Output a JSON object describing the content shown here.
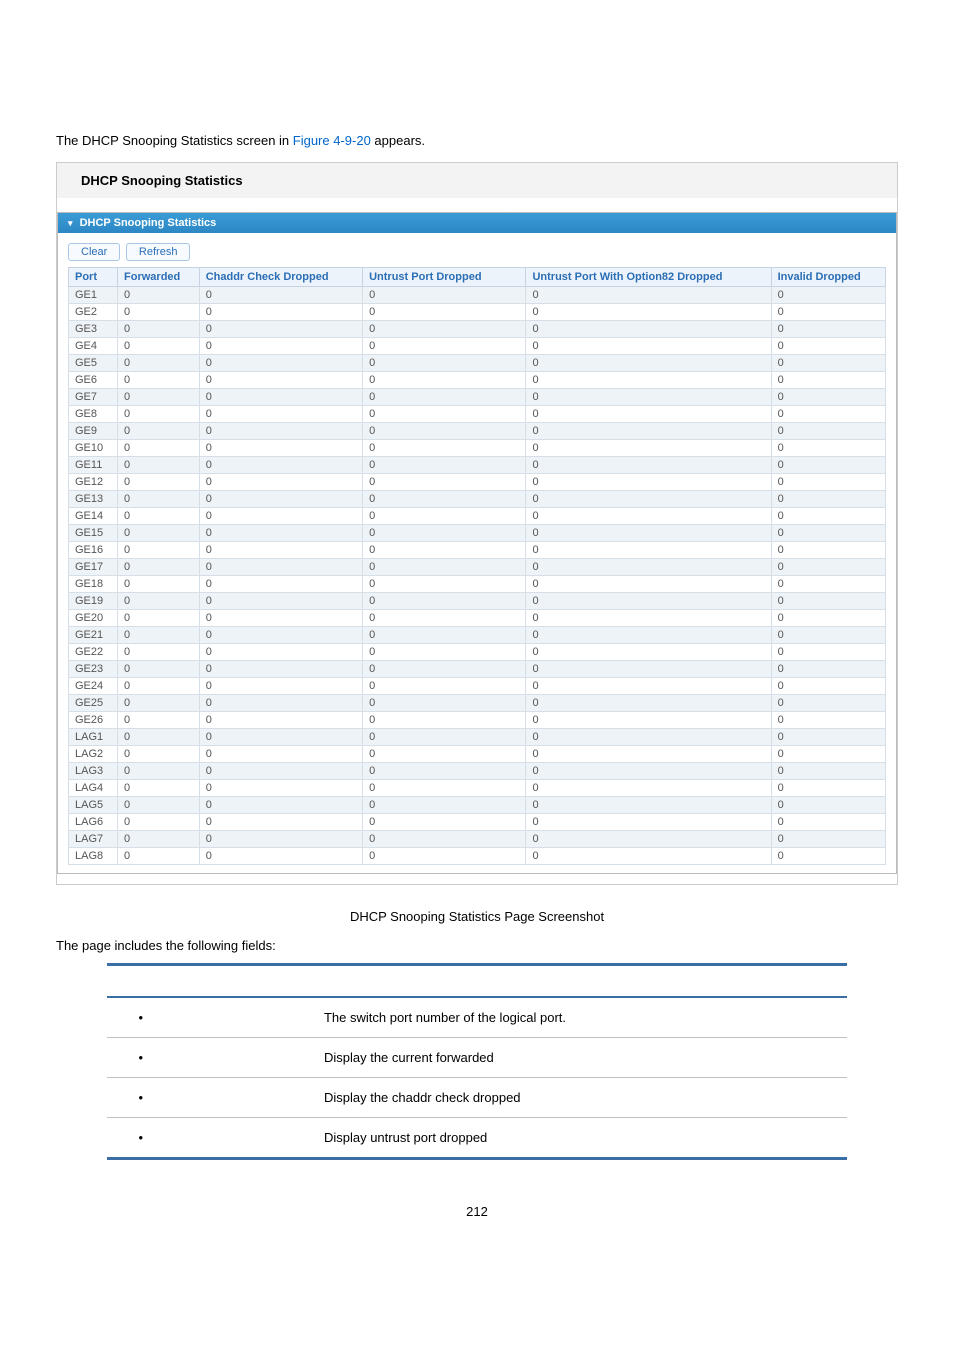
{
  "intro_pre": "The DHCP Snooping Statistics screen in ",
  "intro_link": "Figure 4-9-20",
  "intro_post": " appears.",
  "panel_title": "DHCP Snooping Statistics",
  "section_header": "DHCP Snooping Statistics",
  "buttons": {
    "clear": "Clear",
    "refresh": "Refresh"
  },
  "columns": {
    "port": "Port",
    "forwarded": "Forwarded",
    "chaddr": "Chaddr Check Dropped",
    "untrust": "Untrust Port Dropped",
    "untrust82": "Untrust Port With Option82 Dropped",
    "invalid": "Invalid Dropped"
  },
  "rows": [
    {
      "port": "GE1",
      "forwarded": "0",
      "chaddr": "0",
      "untrust": "0",
      "untrust82": "0",
      "invalid": "0"
    },
    {
      "port": "GE2",
      "forwarded": "0",
      "chaddr": "0",
      "untrust": "0",
      "untrust82": "0",
      "invalid": "0"
    },
    {
      "port": "GE3",
      "forwarded": "0",
      "chaddr": "0",
      "untrust": "0",
      "untrust82": "0",
      "invalid": "0"
    },
    {
      "port": "GE4",
      "forwarded": "0",
      "chaddr": "0",
      "untrust": "0",
      "untrust82": "0",
      "invalid": "0"
    },
    {
      "port": "GE5",
      "forwarded": "0",
      "chaddr": "0",
      "untrust": "0",
      "untrust82": "0",
      "invalid": "0"
    },
    {
      "port": "GE6",
      "forwarded": "0",
      "chaddr": "0",
      "untrust": "0",
      "untrust82": "0",
      "invalid": "0"
    },
    {
      "port": "GE7",
      "forwarded": "0",
      "chaddr": "0",
      "untrust": "0",
      "untrust82": "0",
      "invalid": "0"
    },
    {
      "port": "GE8",
      "forwarded": "0",
      "chaddr": "0",
      "untrust": "0",
      "untrust82": "0",
      "invalid": "0"
    },
    {
      "port": "GE9",
      "forwarded": "0",
      "chaddr": "0",
      "untrust": "0",
      "untrust82": "0",
      "invalid": "0"
    },
    {
      "port": "GE10",
      "forwarded": "0",
      "chaddr": "0",
      "untrust": "0",
      "untrust82": "0",
      "invalid": "0"
    },
    {
      "port": "GE11",
      "forwarded": "0",
      "chaddr": "0",
      "untrust": "0",
      "untrust82": "0",
      "invalid": "0"
    },
    {
      "port": "GE12",
      "forwarded": "0",
      "chaddr": "0",
      "untrust": "0",
      "untrust82": "0",
      "invalid": "0"
    },
    {
      "port": "GE13",
      "forwarded": "0",
      "chaddr": "0",
      "untrust": "0",
      "untrust82": "0",
      "invalid": "0"
    },
    {
      "port": "GE14",
      "forwarded": "0",
      "chaddr": "0",
      "untrust": "0",
      "untrust82": "0",
      "invalid": "0"
    },
    {
      "port": "GE15",
      "forwarded": "0",
      "chaddr": "0",
      "untrust": "0",
      "untrust82": "0",
      "invalid": "0"
    },
    {
      "port": "GE16",
      "forwarded": "0",
      "chaddr": "0",
      "untrust": "0",
      "untrust82": "0",
      "invalid": "0"
    },
    {
      "port": "GE17",
      "forwarded": "0",
      "chaddr": "0",
      "untrust": "0",
      "untrust82": "0",
      "invalid": "0"
    },
    {
      "port": "GE18",
      "forwarded": "0",
      "chaddr": "0",
      "untrust": "0",
      "untrust82": "0",
      "invalid": "0"
    },
    {
      "port": "GE19",
      "forwarded": "0",
      "chaddr": "0",
      "untrust": "0",
      "untrust82": "0",
      "invalid": "0"
    },
    {
      "port": "GE20",
      "forwarded": "0",
      "chaddr": "0",
      "untrust": "0",
      "untrust82": "0",
      "invalid": "0"
    },
    {
      "port": "GE21",
      "forwarded": "0",
      "chaddr": "0",
      "untrust": "0",
      "untrust82": "0",
      "invalid": "0"
    },
    {
      "port": "GE22",
      "forwarded": "0",
      "chaddr": "0",
      "untrust": "0",
      "untrust82": "0",
      "invalid": "0"
    },
    {
      "port": "GE23",
      "forwarded": "0",
      "chaddr": "0",
      "untrust": "0",
      "untrust82": "0",
      "invalid": "0"
    },
    {
      "port": "GE24",
      "forwarded": "0",
      "chaddr": "0",
      "untrust": "0",
      "untrust82": "0",
      "invalid": "0"
    },
    {
      "port": "GE25",
      "forwarded": "0",
      "chaddr": "0",
      "untrust": "0",
      "untrust82": "0",
      "invalid": "0"
    },
    {
      "port": "GE26",
      "forwarded": "0",
      "chaddr": "0",
      "untrust": "0",
      "untrust82": "0",
      "invalid": "0"
    },
    {
      "port": "LAG1",
      "forwarded": "0",
      "chaddr": "0",
      "untrust": "0",
      "untrust82": "0",
      "invalid": "0"
    },
    {
      "port": "LAG2",
      "forwarded": "0",
      "chaddr": "0",
      "untrust": "0",
      "untrust82": "0",
      "invalid": "0"
    },
    {
      "port": "LAG3",
      "forwarded": "0",
      "chaddr": "0",
      "untrust": "0",
      "untrust82": "0",
      "invalid": "0"
    },
    {
      "port": "LAG4",
      "forwarded": "0",
      "chaddr": "0",
      "untrust": "0",
      "untrust82": "0",
      "invalid": "0"
    },
    {
      "port": "LAG5",
      "forwarded": "0",
      "chaddr": "0",
      "untrust": "0",
      "untrust82": "0",
      "invalid": "0"
    },
    {
      "port": "LAG6",
      "forwarded": "0",
      "chaddr": "0",
      "untrust": "0",
      "untrust82": "0",
      "invalid": "0"
    },
    {
      "port": "LAG7",
      "forwarded": "0",
      "chaddr": "0",
      "untrust": "0",
      "untrust82": "0",
      "invalid": "0"
    },
    {
      "port": "LAG8",
      "forwarded": "0",
      "chaddr": "0",
      "untrust": "0",
      "untrust82": "0",
      "invalid": "0"
    }
  ],
  "caption": "DHCP Snooping Statistics Page Screenshot",
  "fields_intro": "The page includes the following fields:",
  "fields": [
    {
      "desc": "The switch port number of the logical port."
    },
    {
      "desc": "Display the current forwarded"
    },
    {
      "desc": "Display the chaddr check dropped"
    },
    {
      "desc": "Display untrust port dropped"
    }
  ],
  "pagenum": "212",
  "col_widths": {
    "port": "6%",
    "forwarded": "10%",
    "chaddr": "20%",
    "untrust": "20%",
    "untrust82": "30%",
    "invalid": "14%"
  }
}
